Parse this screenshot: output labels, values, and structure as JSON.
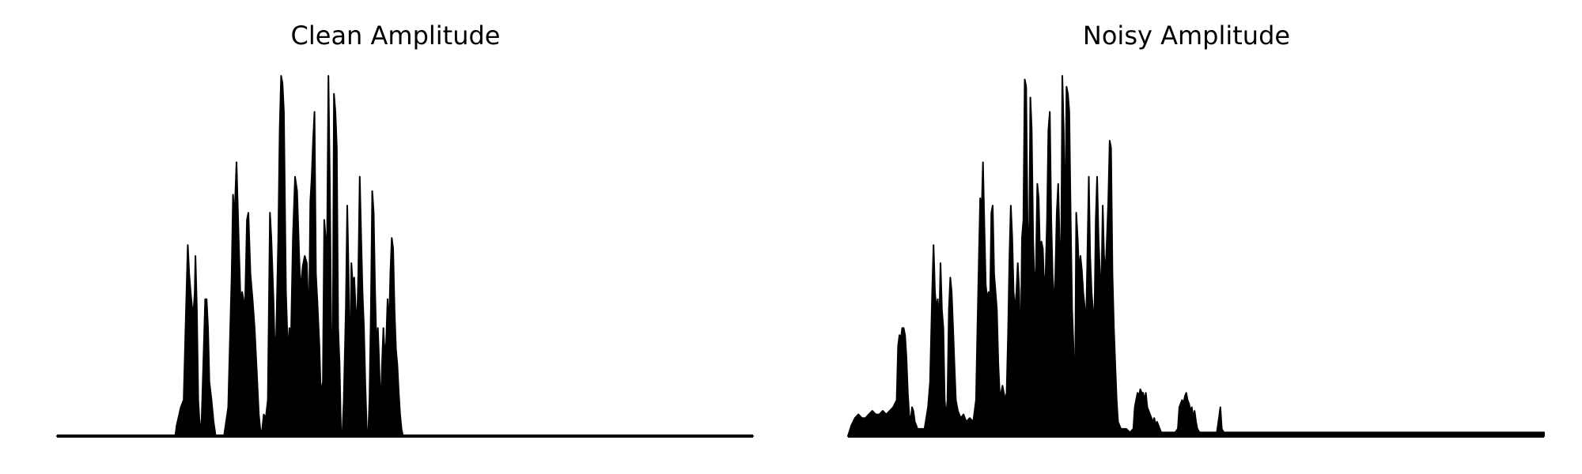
{
  "chart_data": [
    {
      "type": "area",
      "title": "Clean Amplitude",
      "xlabel": "",
      "ylabel": "",
      "axes": "off",
      "grid": false,
      "x_range": [
        0,
        1000
      ],
      "ylim": [
        0,
        1.0
      ],
      "color": "#000000",
      "envelope": [
        [
          0,
          0.0
        ],
        [
          170,
          0.0
        ],
        [
          172,
          0.03
        ],
        [
          178,
          0.08
        ],
        [
          182,
          0.1
        ],
        [
          185,
          0.32
        ],
        [
          188,
          0.53
        ],
        [
          190,
          0.45
        ],
        [
          192,
          0.4
        ],
        [
          194,
          0.36
        ],
        [
          196,
          0.34
        ],
        [
          198,
          0.4
        ],
        [
          199,
          0.5
        ],
        [
          201,
          0.35
        ],
        [
          203,
          0.1
        ],
        [
          206,
          0.0
        ],
        [
          208,
          0.05
        ],
        [
          211,
          0.25
        ],
        [
          213,
          0.38
        ],
        [
          215,
          0.38
        ],
        [
          217,
          0.3
        ],
        [
          219,
          0.15
        ],
        [
          222,
          0.1
        ],
        [
          225,
          0.04
        ],
        [
          228,
          0.0
        ],
        [
          240,
          0.0
        ],
        [
          246,
          0.08
        ],
        [
          249,
          0.3
        ],
        [
          251,
          0.45
        ],
        [
          253,
          0.67
        ],
        [
          255,
          0.6
        ],
        [
          258,
          0.76
        ],
        [
          261,
          0.55
        ],
        [
          264,
          0.36
        ],
        [
          266,
          0.4
        ],
        [
          268,
          0.38
        ],
        [
          270,
          0.34
        ],
        [
          273,
          0.6
        ],
        [
          275,
          0.62
        ],
        [
          278,
          0.45
        ],
        [
          281,
          0.38
        ],
        [
          284,
          0.3
        ],
        [
          287,
          0.18
        ],
        [
          290,
          0.06
        ],
        [
          292,
          0.02
        ],
        [
          294,
          0.0
        ],
        [
          297,
          0.06
        ],
        [
          300,
          0.05
        ],
        [
          303,
          0.1
        ],
        [
          306,
          0.62
        ],
        [
          308,
          0.55
        ],
        [
          311,
          0.38
        ],
        [
          313,
          0.24
        ],
        [
          315,
          0.28
        ],
        [
          318,
          0.55
        ],
        [
          320,
          0.85
        ],
        [
          322,
          1.0
        ],
        [
          324,
          0.98
        ],
        [
          326,
          0.9
        ],
        [
          329,
          0.4
        ],
        [
          332,
          0.22
        ],
        [
          334,
          0.3
        ],
        [
          336,
          0.25
        ],
        [
          339,
          0.55
        ],
        [
          342,
          0.72
        ],
        [
          345,
          0.68
        ],
        [
          348,
          0.5
        ],
        [
          350,
          0.4
        ],
        [
          353,
          0.47
        ],
        [
          356,
          0.5
        ],
        [
          359,
          0.48
        ],
        [
          362,
          0.3
        ],
        [
          364,
          0.65
        ],
        [
          366,
          0.72
        ],
        [
          368,
          0.82
        ],
        [
          370,
          0.9
        ],
        [
          372,
          0.45
        ],
        [
          374,
          0.38
        ],
        [
          377,
          0.25
        ],
        [
          379,
          0.12
        ],
        [
          382,
          0.15
        ],
        [
          384,
          0.6
        ],
        [
          386,
          0.55
        ],
        [
          388,
          0.5
        ],
        [
          390,
          1.0
        ],
        [
          392,
          0.7
        ],
        [
          394,
          0.3
        ],
        [
          396,
          0.15
        ],
        [
          398,
          0.95
        ],
        [
          400,
          0.9
        ],
        [
          402,
          0.8
        ],
        [
          404,
          0.3
        ],
        [
          406,
          0.2
        ],
        [
          408,
          0.02
        ],
        [
          410,
          0.0
        ],
        [
          412,
          0.1
        ],
        [
          415,
          0.35
        ],
        [
          417,
          0.64
        ],
        [
          419,
          0.45
        ],
        [
          421,
          0.15
        ],
        [
          423,
          0.48
        ],
        [
          425,
          0.42
        ],
        [
          427,
          0.44
        ],
        [
          429,
          0.36
        ],
        [
          431,
          0.3
        ],
        [
          433,
          0.45
        ],
        [
          435,
          0.72
        ],
        [
          437,
          0.55
        ],
        [
          439,
          0.4
        ],
        [
          441,
          0.3
        ],
        [
          443,
          0.15
        ],
        [
          445,
          0.02
        ],
        [
          447,
          0.0
        ],
        [
          449,
          0.1
        ],
        [
          451,
          0.35
        ],
        [
          453,
          0.68
        ],
        [
          455,
          0.62
        ],
        [
          457,
          0.4
        ],
        [
          459,
          0.25
        ],
        [
          461,
          0.3
        ],
        [
          463,
          0.2
        ],
        [
          465,
          0.06
        ],
        [
          467,
          0.2
        ],
        [
          469,
          0.3
        ],
        [
          471,
          0.22
        ],
        [
          473,
          0.26
        ],
        [
          475,
          0.38
        ],
        [
          477,
          0.3
        ],
        [
          479,
          0.45
        ],
        [
          481,
          0.55
        ],
        [
          483,
          0.52
        ],
        [
          485,
          0.35
        ],
        [
          487,
          0.24
        ],
        [
          489,
          0.2
        ],
        [
          491,
          0.12
        ],
        [
          493,
          0.06
        ],
        [
          495,
          0.02
        ],
        [
          497,
          0.0
        ],
        [
          1000,
          0.0
        ]
      ]
    },
    {
      "type": "area",
      "title": "Noisy Amplitude",
      "xlabel": "",
      "ylabel": "",
      "axes": "off",
      "grid": false,
      "x_range": [
        0,
        1000
      ],
      "ylim": [
        0,
        1.0
      ],
      "color": "#000000",
      "envelope": [
        [
          0,
          0.0
        ],
        [
          5,
          0.03
        ],
        [
          10,
          0.05
        ],
        [
          15,
          0.06
        ],
        [
          20,
          0.05
        ],
        [
          25,
          0.05
        ],
        [
          30,
          0.06
        ],
        [
          35,
          0.07
        ],
        [
          40,
          0.06
        ],
        [
          45,
          0.06
        ],
        [
          50,
          0.07
        ],
        [
          55,
          0.06
        ],
        [
          60,
          0.07
        ],
        [
          65,
          0.08
        ],
        [
          70,
          0.1
        ],
        [
          72,
          0.25
        ],
        [
          74,
          0.28
        ],
        [
          76,
          0.27
        ],
        [
          78,
          0.3
        ],
        [
          80,
          0.3
        ],
        [
          82,
          0.28
        ],
        [
          84,
          0.22
        ],
        [
          86,
          0.12
        ],
        [
          88,
          0.06
        ],
        [
          90,
          0.04
        ],
        [
          92,
          0.08
        ],
        [
          94,
          0.07
        ],
        [
          96,
          0.04
        ],
        [
          100,
          0.02
        ],
        [
          110,
          0.02
        ],
        [
          115,
          0.08
        ],
        [
          118,
          0.15
        ],
        [
          121,
          0.4
        ],
        [
          123,
          0.53
        ],
        [
          125,
          0.4
        ],
        [
          127,
          0.35
        ],
        [
          129,
          0.38
        ],
        [
          131,
          0.3
        ],
        [
          133,
          0.48
        ],
        [
          135,
          0.35
        ],
        [
          137,
          0.3
        ],
        [
          139,
          0.1
        ],
        [
          141,
          0.05
        ],
        [
          143,
          0.1
        ],
        [
          145,
          0.35
        ],
        [
          147,
          0.44
        ],
        [
          149,
          0.4
        ],
        [
          151,
          0.3
        ],
        [
          153,
          0.2
        ],
        [
          155,
          0.1
        ],
        [
          158,
          0.07
        ],
        [
          162,
          0.05
        ],
        [
          166,
          0.06
        ],
        [
          170,
          0.04
        ],
        [
          175,
          0.05
        ],
        [
          180,
          0.04
        ],
        [
          184,
          0.1
        ],
        [
          186,
          0.3
        ],
        [
          188,
          0.48
        ],
        [
          190,
          0.66
        ],
        [
          192,
          0.62
        ],
        [
          194,
          0.76
        ],
        [
          196,
          0.58
        ],
        [
          198,
          0.42
        ],
        [
          200,
          0.38
        ],
        [
          202,
          0.4
        ],
        [
          204,
          0.35
        ],
        [
          206,
          0.62
        ],
        [
          208,
          0.64
        ],
        [
          210,
          0.45
        ],
        [
          212,
          0.4
        ],
        [
          214,
          0.35
        ],
        [
          216,
          0.2
        ],
        [
          218,
          0.12
        ],
        [
          220,
          0.12
        ],
        [
          222,
          0.14
        ],
        [
          224,
          0.12
        ],
        [
          226,
          0.1
        ],
        [
          228,
          0.12
        ],
        [
          230,
          0.28
        ],
        [
          232,
          0.5
        ],
        [
          234,
          0.64
        ],
        [
          236,
          0.55
        ],
        [
          238,
          0.4
        ],
        [
          240,
          0.35
        ],
        [
          242,
          0.4
        ],
        [
          244,
          0.48
        ],
        [
          246,
          0.4
        ],
        [
          248,
          0.2
        ],
        [
          250,
          0.55
        ],
        [
          252,
          0.6
        ],
        [
          254,
          0.99
        ],
        [
          256,
          0.97
        ],
        [
          258,
          0.6
        ],
        [
          260,
          0.45
        ],
        [
          262,
          0.94
        ],
        [
          264,
          0.85
        ],
        [
          266,
          0.55
        ],
        [
          268,
          0.42
        ],
        [
          270,
          0.46
        ],
        [
          272,
          0.7
        ],
        [
          274,
          0.66
        ],
        [
          276,
          0.5
        ],
        [
          278,
          0.54
        ],
        [
          280,
          0.52
        ],
        [
          282,
          0.4
        ],
        [
          284,
          0.45
        ],
        [
          286,
          0.6
        ],
        [
          288,
          0.85
        ],
        [
          290,
          0.9
        ],
        [
          292,
          0.6
        ],
        [
          294,
          0.45
        ],
        [
          296,
          0.35
        ],
        [
          298,
          0.45
        ],
        [
          300,
          0.62
        ],
        [
          302,
          0.7
        ],
        [
          304,
          0.55
        ],
        [
          306,
          0.4
        ],
        [
          308,
          1.0
        ],
        [
          310,
          0.85
        ],
        [
          312,
          0.55
        ],
        [
          314,
          0.97
        ],
        [
          316,
          0.95
        ],
        [
          318,
          0.9
        ],
        [
          320,
          0.6
        ],
        [
          322,
          0.35
        ],
        [
          324,
          0.25
        ],
        [
          326,
          0.05
        ],
        [
          328,
          0.62
        ],
        [
          330,
          0.55
        ],
        [
          332,
          0.45
        ],
        [
          334,
          0.5
        ],
        [
          336,
          0.46
        ],
        [
          338,
          0.4
        ],
        [
          340,
          0.36
        ],
        [
          342,
          0.3
        ],
        [
          344,
          0.5
        ],
        [
          346,
          0.72
        ],
        [
          348,
          0.5
        ],
        [
          350,
          0.4
        ],
        [
          352,
          0.35
        ],
        [
          354,
          0.3
        ],
        [
          356,
          0.6
        ],
        [
          358,
          0.72
        ],
        [
          360,
          0.55
        ],
        [
          362,
          0.45
        ],
        [
          364,
          0.4
        ],
        [
          366,
          0.64
        ],
        [
          368,
          0.5
        ],
        [
          370,
          0.45
        ],
        [
          372,
          0.55
        ],
        [
          374,
          0.65
        ],
        [
          376,
          0.82
        ],
        [
          378,
          0.8
        ],
        [
          380,
          0.45
        ],
        [
          382,
          0.3
        ],
        [
          384,
          0.2
        ],
        [
          386,
          0.1
        ],
        [
          388,
          0.04
        ],
        [
          392,
          0.02
        ],
        [
          400,
          0.02
        ],
        [
          405,
          0.01
        ],
        [
          410,
          0.02
        ],
        [
          412,
          0.08
        ],
        [
          414,
          0.1
        ],
        [
          416,
          0.12
        ],
        [
          418,
          0.11
        ],
        [
          420,
          0.13
        ],
        [
          422,
          0.12
        ],
        [
          424,
          0.12
        ],
        [
          426,
          0.1
        ],
        [
          428,
          0.12
        ],
        [
          430,
          0.08
        ],
        [
          432,
          0.07
        ],
        [
          434,
          0.06
        ],
        [
          436,
          0.05
        ],
        [
          438,
          0.04
        ],
        [
          440,
          0.05
        ],
        [
          442,
          0.03
        ],
        [
          444,
          0.04
        ],
        [
          446,
          0.03
        ],
        [
          448,
          0.02
        ],
        [
          450,
          0.01
        ],
        [
          460,
          0.01
        ],
        [
          470,
          0.01
        ],
        [
          474,
          0.02
        ],
        [
          476,
          0.08
        ],
        [
          478,
          0.09
        ],
        [
          480,
          0.1
        ],
        [
          482,
          0.09
        ],
        [
          484,
          0.11
        ],
        [
          486,
          0.12
        ],
        [
          488,
          0.1
        ],
        [
          490,
          0.09
        ],
        [
          492,
          0.07
        ],
        [
          494,
          0.08
        ],
        [
          496,
          0.05
        ],
        [
          498,
          0.07
        ],
        [
          500,
          0.04
        ],
        [
          502,
          0.02
        ],
        [
          505,
          0.01
        ],
        [
          530,
          0.01
        ],
        [
          533,
          0.05
        ],
        [
          535,
          0.08
        ],
        [
          537,
          0.02
        ],
        [
          540,
          0.01
        ],
        [
          1000,
          0.01
        ]
      ]
    }
  ]
}
